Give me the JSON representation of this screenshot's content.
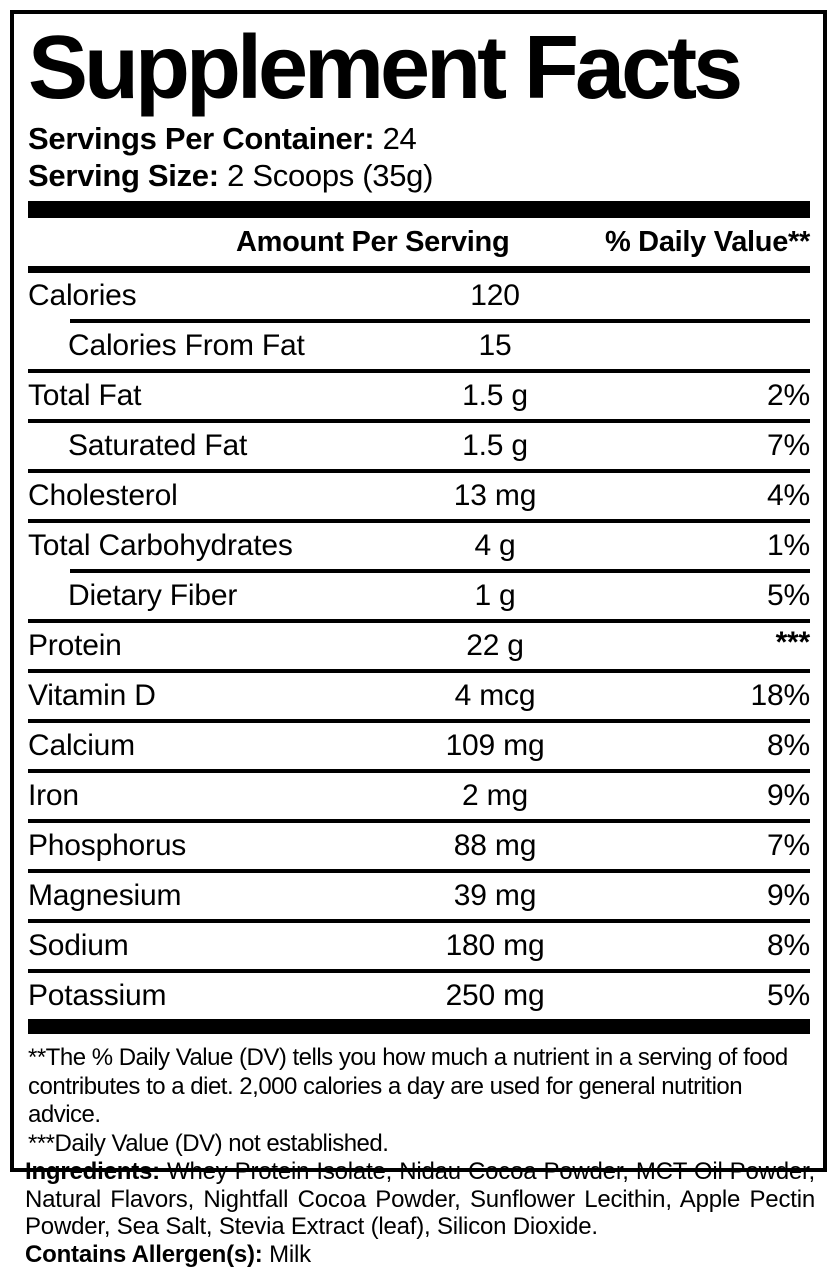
{
  "title": "Supplement Facts",
  "servings": {
    "per_container_label": "Servings Per Container:",
    "per_container_value": "24",
    "size_label": "Serving Size:",
    "size_value": "2 Scoops (35g)"
  },
  "table": {
    "col_amount": "Amount Per Serving",
    "col_dv": "% Daily Value**",
    "rows": [
      {
        "label": "Calories",
        "amount": "120",
        "dv": "",
        "indent": false,
        "divider": "none",
        "dv_raised": false
      },
      {
        "label": "Calories From Fat",
        "amount": "15",
        "dv": "",
        "indent": true,
        "divider": "indent",
        "dv_raised": false
      },
      {
        "label": "Total Fat",
        "amount": "1.5 g",
        "dv": "2%",
        "indent": false,
        "divider": "full",
        "dv_raised": false
      },
      {
        "label": "Saturated Fat",
        "amount": "1.5 g",
        "dv": "7%",
        "indent": true,
        "divider": "full",
        "dv_raised": false
      },
      {
        "label": "Cholesterol",
        "amount": "13 mg",
        "dv": "4%",
        "indent": false,
        "divider": "full",
        "dv_raised": false
      },
      {
        "label": "Total Carbohydrates",
        "amount": "4 g",
        "dv": "1%",
        "indent": false,
        "divider": "full",
        "dv_raised": false
      },
      {
        "label": "Dietary Fiber",
        "amount": "1 g",
        "dv": "5%",
        "indent": true,
        "divider": "indent",
        "dv_raised": false
      },
      {
        "label": "Protein",
        "amount": "22 g",
        "dv": "***",
        "indent": false,
        "divider": "full",
        "dv_raised": true
      },
      {
        "label": "Vitamin D",
        "amount": "4 mcg",
        "dv": "18%",
        "indent": false,
        "divider": "full",
        "dv_raised": false
      },
      {
        "label": "Calcium",
        "amount": "109 mg",
        "dv": "8%",
        "indent": false,
        "divider": "full",
        "dv_raised": false
      },
      {
        "label": "Iron",
        "amount": "2 mg",
        "dv": "9%",
        "indent": false,
        "divider": "full",
        "dv_raised": false
      },
      {
        "label": "Phosphorus",
        "amount": "88 mg",
        "dv": "7%",
        "indent": false,
        "divider": "full",
        "dv_raised": false
      },
      {
        "label": "Magnesium",
        "amount": "39 mg",
        "dv": "9%",
        "indent": false,
        "divider": "full",
        "dv_raised": false
      },
      {
        "label": "Sodium",
        "amount": "180 mg",
        "dv": "8%",
        "indent": false,
        "divider": "full",
        "dv_raised": false
      },
      {
        "label": "Potassium",
        "amount": "250 mg",
        "dv": "5%",
        "indent": false,
        "divider": "full",
        "dv_raised": false
      }
    ]
  },
  "footnotes": [
    "**The % Daily Value (DV) tells you how much a nutrient in a serving of food contributes to a diet. 2,000 calories a day are used for general nutrition advice.",
    "***Daily Value (DV) not established."
  ],
  "ingredients": {
    "label": "Ingredients:",
    "text": "Whey Protein Isolate, Nidau Cocoa Powder, MCT Oil Powder, Natural Flavors, Nightfall Cocoa Powder, Sunflower Lecithin, Apple Pectin Powder, Sea Salt, Stevia Extract (leaf), Silicon Dioxide."
  },
  "allergens": {
    "label": "Contains Allergen(s):",
    "value": "Milk"
  },
  "colors": {
    "text": "#000000",
    "background": "#ffffff"
  }
}
